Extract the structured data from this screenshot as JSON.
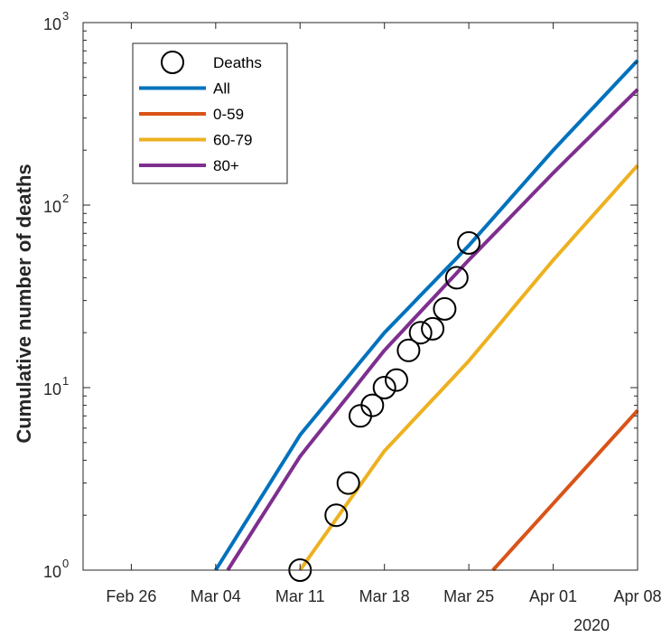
{
  "chart_data": {
    "type": "line",
    "xlabel": "",
    "ylabel": "Cumulative number of deaths",
    "y_scale": "log",
    "ylim": [
      1,
      1000
    ],
    "xlim": [
      "2020-02-22",
      "2020-04-08"
    ],
    "x_ticks": [
      "Feb 26",
      "Mar 04",
      "Mar 11",
      "Mar 18",
      "Mar 25",
      "Apr 01",
      "Apr 08"
    ],
    "x_tick_dates": [
      "2020-02-26",
      "2020-03-04",
      "2020-03-11",
      "2020-03-18",
      "2020-03-25",
      "2020-04-01",
      "2020-04-08"
    ],
    "x_secondary_label": "2020",
    "y_ticks": [
      {
        "value": 1,
        "base": "10",
        "exp": "0"
      },
      {
        "value": 10,
        "base": "10",
        "exp": "1"
      },
      {
        "value": 100,
        "base": "10",
        "exp": "2"
      },
      {
        "value": 1000,
        "base": "10",
        "exp": "3"
      }
    ],
    "grid": false,
    "legend": "top-left",
    "deaths": {
      "name": "Deaths",
      "points": [
        {
          "x": "2020-03-11",
          "y": 1
        },
        {
          "x": "2020-03-14",
          "y": 2
        },
        {
          "x": "2020-03-15",
          "y": 3
        },
        {
          "x": "2020-03-16",
          "y": 7
        },
        {
          "x": "2020-03-17",
          "y": 8
        },
        {
          "x": "2020-03-18",
          "y": 10
        },
        {
          "x": "2020-03-19",
          "y": 11
        },
        {
          "x": "2020-03-20",
          "y": 16
        },
        {
          "x": "2020-03-21",
          "y": 20
        },
        {
          "x": "2020-03-22",
          "y": 21
        },
        {
          "x": "2020-03-23",
          "y": 27
        },
        {
          "x": "2020-03-24",
          "y": 40
        },
        {
          "x": "2020-03-25",
          "y": 62
        }
      ]
    },
    "series": [
      {
        "name": "All",
        "color": "#0072BD",
        "x": [
          "2020-03-04",
          "2020-03-11",
          "2020-03-18",
          "2020-03-25",
          "2020-04-01",
          "2020-04-08"
        ],
        "y": [
          1,
          5.5,
          20,
          60,
          200,
          620
        ]
      },
      {
        "name": "0-59",
        "color": "#D95319",
        "x": [
          "2020-03-27",
          "2020-04-08"
        ],
        "y": [
          1,
          7.5
        ]
      },
      {
        "name": "60-79",
        "color": "#EDB120",
        "x": [
          "2020-03-11",
          "2020-03-18",
          "2020-03-25",
          "2020-04-01",
          "2020-04-08"
        ],
        "y": [
          1,
          4.5,
          14,
          50,
          165
        ]
      },
      {
        "name": "80+",
        "color": "#7E2F8E",
        "x": [
          "2020-03-05",
          "2020-03-11",
          "2020-03-18",
          "2020-03-25",
          "2020-04-01",
          "2020-04-08"
        ],
        "y": [
          1,
          4.2,
          16,
          50,
          150,
          430
        ]
      }
    ]
  }
}
